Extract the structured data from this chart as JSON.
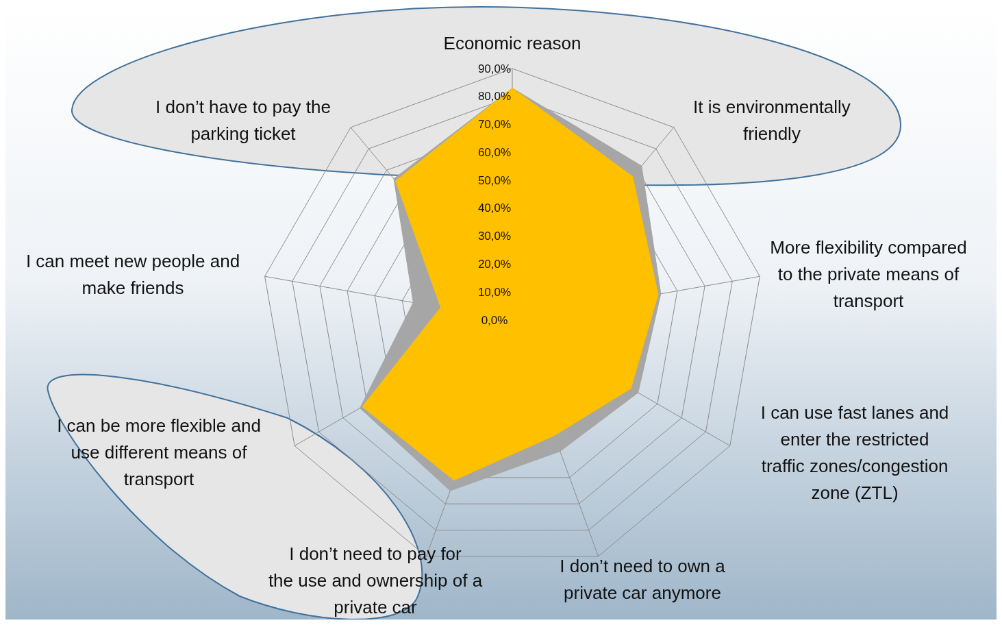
{
  "chart_data": {
    "type": "radar",
    "categories": [
      "Economic reason",
      "It is environmentally friendly",
      "More flexibility compared to the private means of transport",
      "I can use fast lanes and enter the restricted traffic zones/congestion zone (ZTL)",
      "I don’t need to own a private car anymore",
      "I don’t need to pay for the use and ownership of a private car",
      "I can be more flexible and use different means of transport",
      "I can meet new people and make friends",
      "I don’t have to pay the parking ticket"
    ],
    "series": [
      {
        "color": "#a6a6a6",
        "values": [
          83,
          72,
          54,
          52,
          50,
          65,
          63,
          36,
          66
        ]
      },
      {
        "color": "#ffc000",
        "values": [
          83,
          67,
          53,
          49,
          44,
          61,
          62,
          26,
          65
        ]
      }
    ],
    "ylim": [
      0,
      90
    ],
    "yticks": [
      {
        "value": 0,
        "label": "0,0%"
      },
      {
        "value": 10,
        "label": "10,0%"
      },
      {
        "value": 20,
        "label": "20,0%"
      },
      {
        "value": 30,
        "label": "30,0%"
      },
      {
        "value": 40,
        "label": "40,0%"
      },
      {
        "value": 50,
        "label": "50,0%"
      },
      {
        "value": 60,
        "label": "60,0%"
      },
      {
        "value": 70,
        "label": "70,0%"
      },
      {
        "value": 80,
        "label": "80,0%"
      },
      {
        "value": 90,
        "label": "90,0%"
      }
    ],
    "grid": true
  }
}
